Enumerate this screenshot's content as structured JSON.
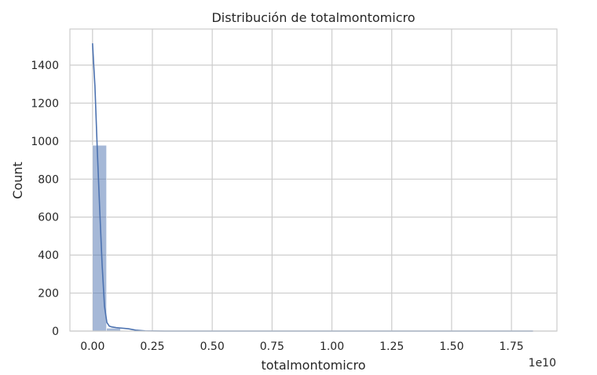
{
  "chart_data": {
    "type": "histogram",
    "title": "Distribución de totalmontomicro",
    "xlabel": "totalmontomicro",
    "ylabel": "Count",
    "x_offset_label": "1e10",
    "x_scale_multiplier": 10000000000,
    "xlim": [
      -0.0945,
      1.94
    ],
    "ylim": [
      0,
      1590
    ],
    "x_ticks": [
      0.0,
      0.25,
      0.5,
      0.75,
      1.0,
      1.25,
      1.5,
      1.75
    ],
    "x_tick_labels": [
      "0.00",
      "0.25",
      "0.50",
      "0.75",
      "1.00",
      "1.25",
      "1.50",
      "1.75"
    ],
    "y_ticks": [
      0,
      200,
      400,
      600,
      800,
      1000,
      1200,
      1400
    ],
    "y_tick_labels": [
      "0",
      "200",
      "400",
      "600",
      "800",
      "1000",
      "1200",
      "1400"
    ],
    "grid": true,
    "bins": {
      "start": 0.0,
      "width": 0.0585,
      "counts": [
        978,
        15,
        3,
        1,
        0,
        0,
        1,
        0,
        0,
        0,
        0,
        0,
        0,
        0,
        0,
        0,
        0,
        0,
        0,
        0,
        0,
        0,
        0,
        0,
        0,
        0,
        0,
        0,
        0,
        0,
        0,
        1
      ]
    },
    "kde": {
      "x": [
        0.0,
        0.005,
        0.01,
        0.02,
        0.03,
        0.04,
        0.05,
        0.06,
        0.07,
        0.08,
        0.09,
        0.1,
        0.15,
        0.18,
        0.22,
        0.3,
        0.5,
        1.0,
        1.5,
        1.84
      ],
      "y": [
        1515,
        1400,
        1290,
        950,
        640,
        350,
        130,
        45,
        26,
        22,
        20,
        18,
        12,
        5,
        1,
        0,
        0,
        0,
        0,
        0
      ]
    },
    "colors": {
      "bar": "#4c72b0",
      "line": "#4c72b0",
      "grid": "#cccccc",
      "frame": "#cccccc"
    }
  }
}
